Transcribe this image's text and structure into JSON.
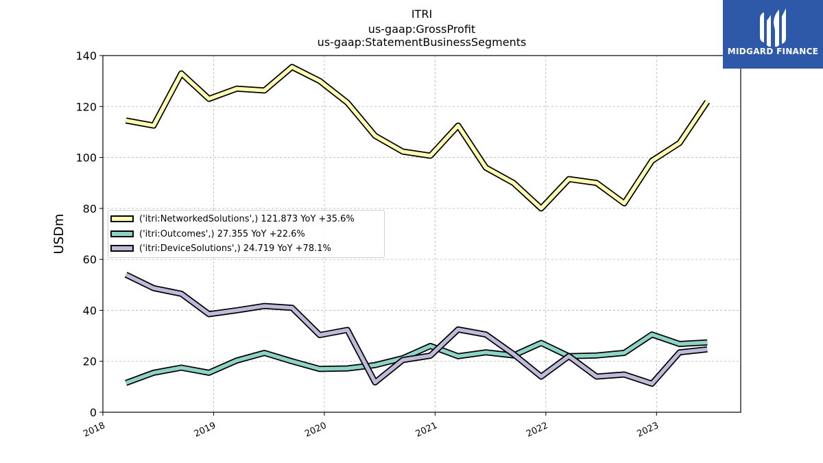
{
  "header": {
    "title_lines": [
      "ITRI",
      "us-gaap:GrossProfit",
      "us-gaap:StatementBusinessSegments"
    ]
  },
  "logo": {
    "text": "MIDGARD FINANCE",
    "background": "#2e59a8"
  },
  "chart_data": {
    "type": "line",
    "title": "ITRI\nus-gaap:GrossProfit\nus-gaap:StatementBusinessSegments",
    "ylabel": "USDm",
    "xlabel": "",
    "ylim": [
      0,
      140
    ],
    "xlim": [
      2018.0,
      2023.76
    ],
    "yticks": [
      0,
      20,
      40,
      60,
      80,
      100,
      120,
      140
    ],
    "xticks": [
      "2018",
      "2019",
      "2020",
      "2021",
      "2022",
      "2023"
    ],
    "grid": true,
    "legend_position": "center-left",
    "x": [
      "2018-03",
      "2018-06",
      "2018-09",
      "2018-12",
      "2019-03",
      "2019-06",
      "2019-09",
      "2019-12",
      "2020-03",
      "2020-06",
      "2020-09",
      "2020-12",
      "2021-03",
      "2021-06",
      "2021-09",
      "2021-12",
      "2022-03",
      "2022-06",
      "2022-09",
      "2022-12",
      "2023-03",
      "2023-06"
    ],
    "series": [
      {
        "name": "('itri:NetworkedSolutions',)",
        "legend": "('itri:NetworkedSolutions',) 121.873 YoY +35.6%",
        "color": "#ffffb3",
        "values": [
          114.5,
          112.5,
          133.0,
          123.0,
          127.0,
          126.3,
          135.5,
          130.0,
          121.5,
          108.5,
          102.3,
          100.7,
          112.5,
          96.0,
          90.0,
          80.0,
          91.5,
          90.0,
          82.0,
          98.7,
          105.7,
          121.9
        ]
      },
      {
        "name": "('itri:Outcomes',)",
        "legend": "('itri:Outcomes',) 27.355 YoY +22.6%",
        "color": "#8dd3c7",
        "values": [
          11.5,
          15.5,
          17.5,
          15.5,
          20.3,
          23.3,
          20.0,
          17.0,
          17.2,
          18.5,
          21.2,
          26.0,
          22.0,
          23.5,
          22.3,
          27.2,
          22.0,
          22.3,
          23.3,
          30.5,
          26.8,
          27.4
        ]
      },
      {
        "name": "('itri:DeviceSolutions',)",
        "legend": "('itri:DeviceSolutions',) 24.719 YoY +78.1%",
        "color": "#bebada",
        "values": [
          54.0,
          48.7,
          46.5,
          38.5,
          40.0,
          41.7,
          41.0,
          30.3,
          32.3,
          11.7,
          20.5,
          22.2,
          32.5,
          30.5,
          22.8,
          14.0,
          22.0,
          14.0,
          14.8,
          11.2,
          23.5,
          24.7
        ]
      }
    ]
  }
}
